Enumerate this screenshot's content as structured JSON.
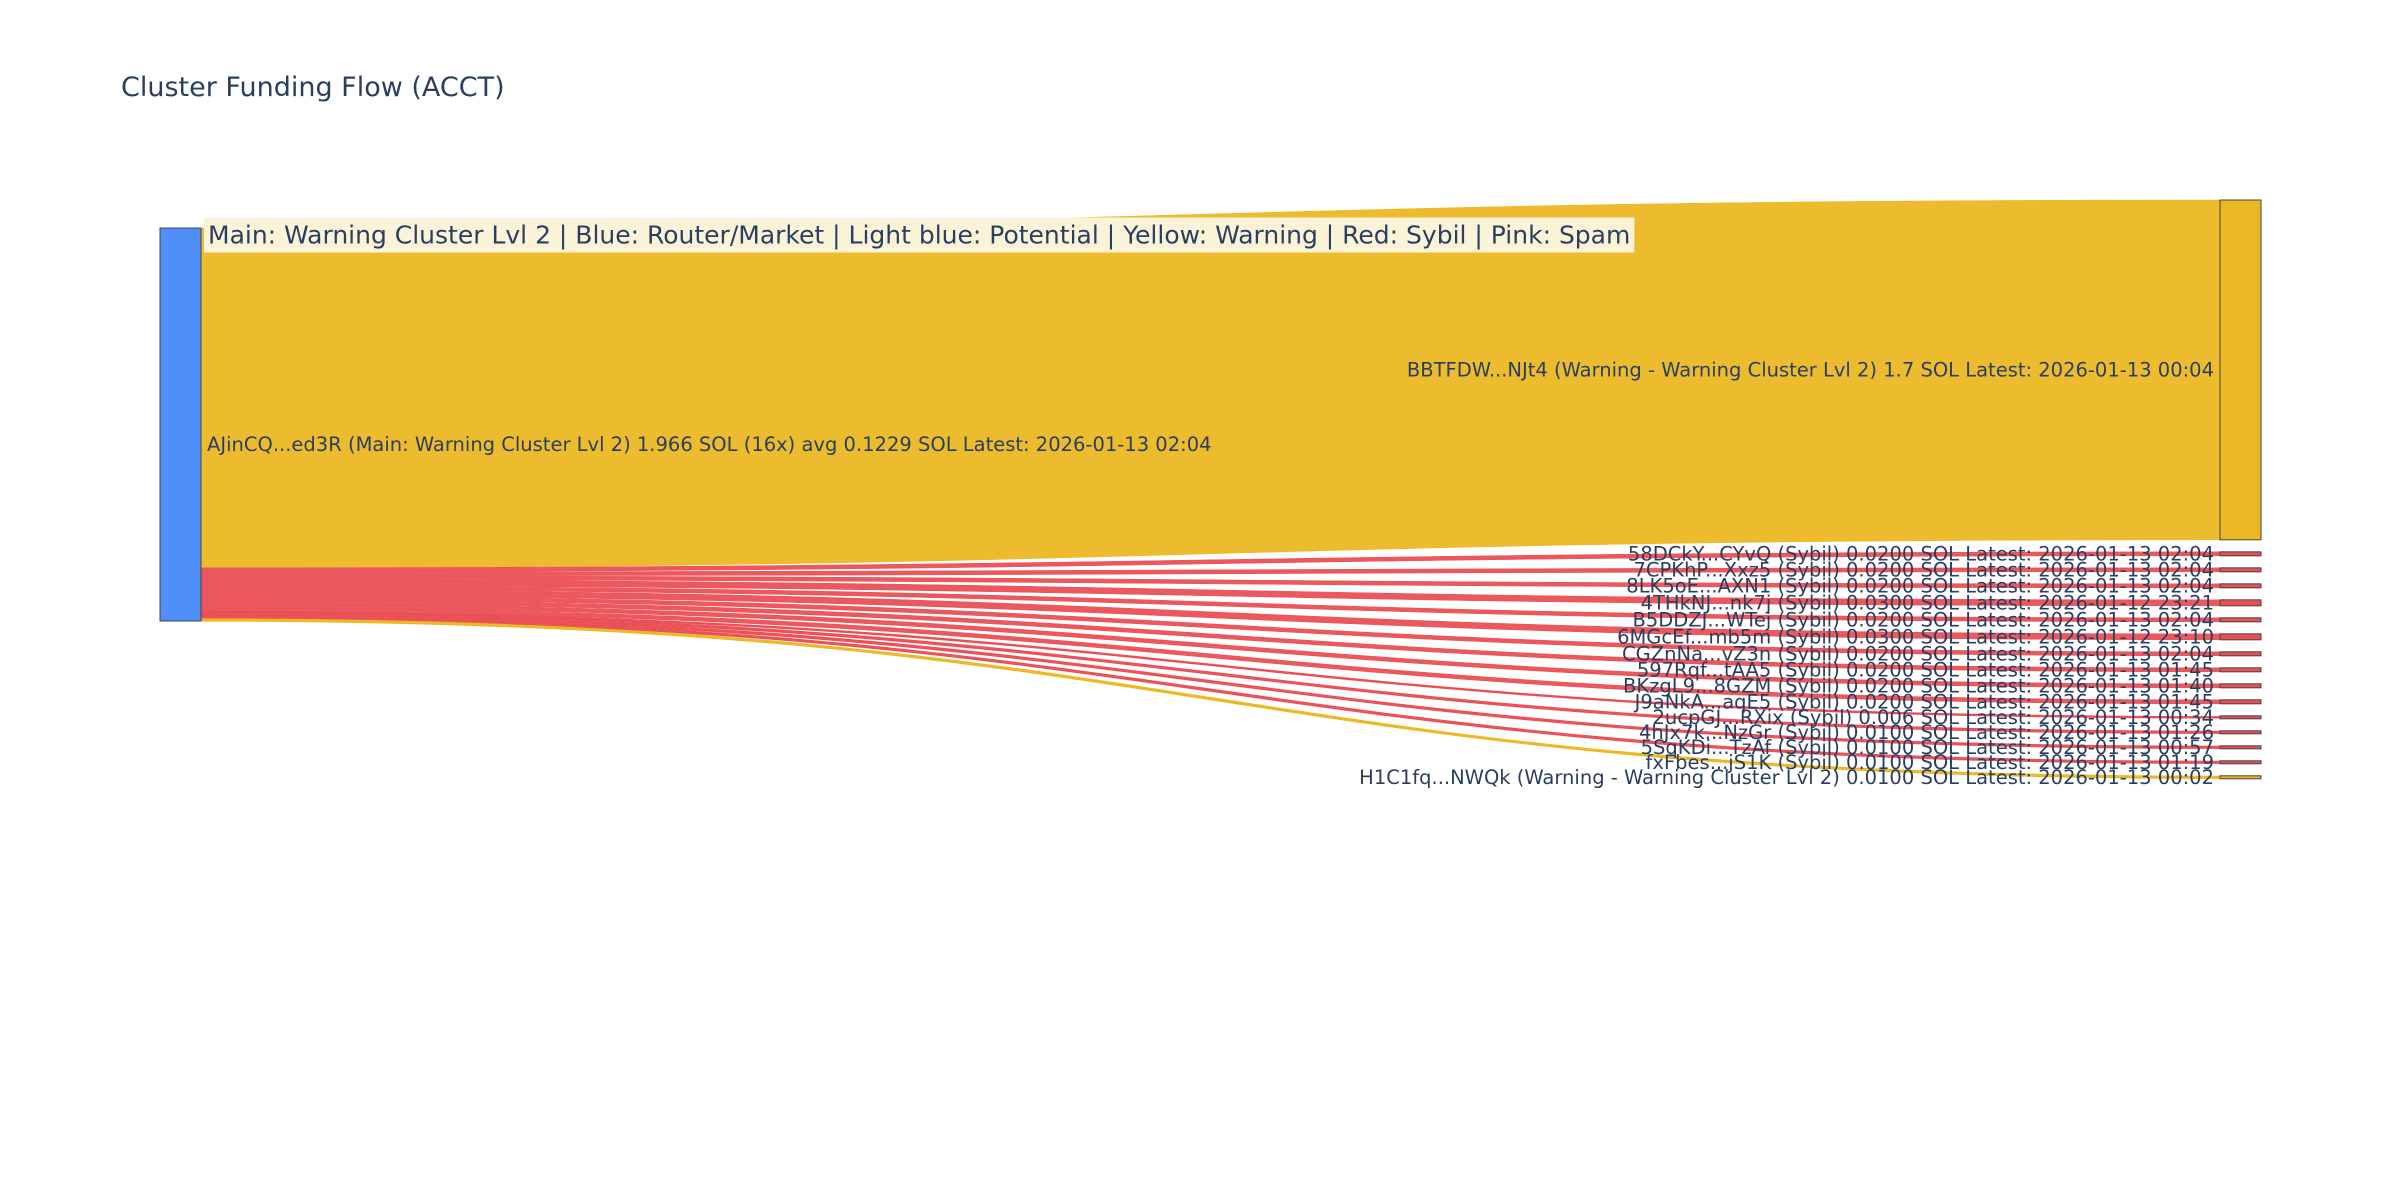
{
  "title": "Cluster Funding Flow (ACCT)",
  "legend": "Main: Warning Cluster Lvl 2  |  Blue: Router/Market | Light blue: Potential | Yellow: Warning | Red: Sybil | Pink: Spam",
  "colors": {
    "main": "#4f8ff7",
    "warning": "#ebb823",
    "sybil": "#ea4f55",
    "node_border": "#444444",
    "legend_bg": "#fbf3d8",
    "text": "#2a3f5f"
  },
  "chart_data": {
    "type": "sankey",
    "source": {
      "label": "AJinCQ...ed3R (Main: Warning Cluster Lvl 2) 1.966 SOL (16x) avg 0.1229 SOL Latest: 2026-01-13 02:04",
      "category": "main",
      "value": 1.966
    },
    "targets": [
      {
        "label": "BBTFDW...NJt4 (Warning - Warning Cluster Lvl 2) 1.7 SOL Latest: 2026-01-13 00:04",
        "value": 1.7,
        "category": "warning"
      },
      {
        "label": "58DCkY...CYvQ (Sybil) 0.0200 SOL Latest: 2026-01-13 02:04",
        "value": 0.02,
        "category": "sybil"
      },
      {
        "label": "7CPKhP...Xxz5 (Sybil) 0.0200 SOL Latest: 2026-01-13 02:04",
        "value": 0.02,
        "category": "sybil"
      },
      {
        "label": "8LK5oE...AXN1 (Sybil) 0.0200 SOL Latest: 2026-01-13 02:04",
        "value": 0.02,
        "category": "sybil"
      },
      {
        "label": "4THkNJ...nk7j (Sybil) 0.0300 SOL Latest: 2026-01-12 23:21",
        "value": 0.03,
        "category": "sybil"
      },
      {
        "label": "B5DDZJ...WTej (Sybil) 0.0200 SOL Latest: 2026-01-13 02:04",
        "value": 0.02,
        "category": "sybil"
      },
      {
        "label": "6MGcEf...mb5m (Sybil) 0.0300 SOL Latest: 2026-01-12 23:10",
        "value": 0.03,
        "category": "sybil"
      },
      {
        "label": "CGZnNa...vZ3n (Sybil) 0.0200 SOL Latest: 2026-01-13 02:04",
        "value": 0.02,
        "category": "sybil"
      },
      {
        "label": "597Rqf...tAA5 (Sybil) 0.0200 SOL Latest: 2026-01-13 01:45",
        "value": 0.02,
        "category": "sybil"
      },
      {
        "label": "BKzgL9...8GZM (Sybil) 0.0200 SOL Latest: 2026-01-13 01:40",
        "value": 0.02,
        "category": "sybil"
      },
      {
        "label": "J9aNkA...aqE5 (Sybil) 0.0200 SOL Latest: 2026-01-13 01:45",
        "value": 0.02,
        "category": "sybil"
      },
      {
        "label": "2ucpGJ...RXix (Sybil) 0.006 SOL Latest: 2026-01-13 00:34",
        "value": 0.006,
        "category": "sybil"
      },
      {
        "label": "4hJx7k...NzGr (Sybil) 0.0100 SOL Latest: 2026-01-13 01:26",
        "value": 0.01,
        "category": "sybil"
      },
      {
        "label": "5SqKDi...TzAf (Sybil) 0.0100 SOL Latest: 2026-01-13 00:57",
        "value": 0.01,
        "category": "sybil"
      },
      {
        "label": "fxFbes...jS1K (Sybil) 0.0100 SOL Latest: 2026-01-13 01:19",
        "value": 0.01,
        "category": "sybil"
      },
      {
        "label": "H1C1fq...NWQk (Warning - Warning Cluster Lvl 2) 0.0100 SOL Latest: 2026-01-13 00:02",
        "value": 0.01,
        "category": "warning"
      }
    ]
  }
}
